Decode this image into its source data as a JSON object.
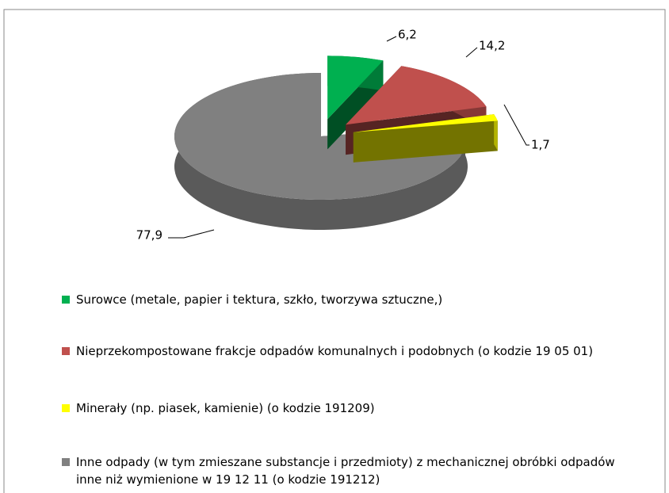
{
  "chart_data": {
    "type": "pie",
    "categories": [
      "Surowce (metale, papier i tektura, szkło, tworzywa sztuczne,)",
      "Nieprzekompostowane frakcje odpadów komunalnych i podobnych (o kodzie 19 05 01)",
      "Minerały (np. piasek, kamienie) (o kodzie 191209)",
      "Inne odpady (w tym zmieszane substancje i przedmioty) z mechanicznej obróbki odpadów inne niż wymienione w 19 12 11 (o kodzie 191212)"
    ],
    "values": [
      6.2,
      14.2,
      1.7,
      77.9
    ],
    "value_labels": [
      "6,2",
      "14,2",
      "1,7",
      "77,9"
    ],
    "colors": [
      "#00b050",
      "#c0504d",
      "#ffff00",
      "#808080"
    ]
  }
}
